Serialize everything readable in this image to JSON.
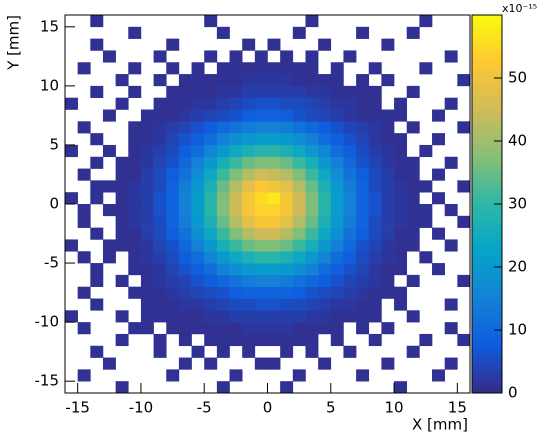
{
  "chart_data": {
    "type": "heatmap",
    "x_label": "X [mm]",
    "y_label": "Y [mm]",
    "z_multiplier": "x10⁻¹⁵",
    "xlim": [
      -16,
      16
    ],
    "ylim": [
      -16,
      16
    ],
    "zlim": [
      0,
      60
    ],
    "xticks": [
      -15,
      -10,
      -5,
      0,
      5,
      10,
      15
    ],
    "yticks": [
      -15,
      -10,
      -5,
      0,
      5,
      10,
      15
    ],
    "zticks": [
      0,
      10,
      20,
      30,
      40,
      50
    ],
    "xbins": [
      -16,
      -15,
      -14,
      -13,
      -12,
      -11,
      -10,
      -9,
      -8,
      -7,
      -6,
      -5,
      -4,
      -3,
      -2,
      -1,
      0,
      1,
      2,
      3,
      4,
      5,
      6,
      7,
      8,
      9,
      10,
      11,
      12,
      13,
      14,
      15,
      16
    ],
    "ybins": [
      -16,
      -15,
      -14,
      -13,
      -12,
      -11,
      -10,
      -9,
      -8,
      -7,
      -6,
      -5,
      -4,
      -3,
      -2,
      -1,
      0,
      1,
      2,
      3,
      4,
      5,
      6,
      7,
      8,
      9,
      10,
      11,
      12,
      13,
      14,
      15,
      16
    ],
    "colorscale": [
      "#352a87",
      "#0f5cdd",
      "#1481d6",
      "#06a4ca",
      "#2eb7a4",
      "#87bf77",
      "#d1bb59",
      "#fec832",
      "#f9fb0e"
    ],
    "z": [
      [
        0,
        0,
        0,
        0,
        1,
        0,
        0,
        0,
        0,
        0,
        0,
        0,
        1,
        0,
        0,
        0,
        0,
        1,
        0,
        0,
        0,
        0,
        0,
        0,
        0,
        0,
        1,
        0,
        0,
        0,
        0,
        0
      ],
      [
        0,
        1,
        0,
        0,
        0,
        0,
        0,
        0,
        1,
        0,
        0,
        0,
        0,
        1,
        0,
        0,
        0,
        0,
        1,
        0,
        0,
        0,
        0,
        1,
        0,
        0,
        0,
        0,
        0,
        1,
        0,
        0
      ],
      [
        0,
        0,
        0,
        1,
        0,
        0,
        0,
        0,
        0,
        1,
        0,
        1,
        0,
        0,
        0,
        1,
        1,
        0,
        0,
        0,
        1,
        0,
        0,
        0,
        0,
        1,
        0,
        0,
        0,
        0,
        1,
        0
      ],
      [
        0,
        0,
        1,
        0,
        0,
        0,
        0,
        1,
        0,
        0,
        1,
        0,
        1,
        0,
        1,
        0,
        0,
        1,
        0,
        1,
        0,
        0,
        1,
        0,
        0,
        0,
        0,
        1,
        0,
        0,
        0,
        0
      ],
      [
        0,
        0,
        0,
        0,
        1,
        0,
        0,
        1,
        0,
        1,
        0,
        1,
        1,
        1,
        1,
        1,
        1,
        1,
        1,
        1,
        0,
        1,
        0,
        0,
        1,
        0,
        0,
        0,
        1,
        0,
        0,
        1
      ],
      [
        0,
        1,
        0,
        0,
        0,
        1,
        1,
        0,
        1,
        1,
        1,
        1,
        1,
        1,
        2,
        2,
        2,
        2,
        1,
        1,
        1,
        1,
        0,
        1,
        0,
        1,
        0,
        0,
        0,
        0,
        1,
        0
      ],
      [
        1,
        0,
        0,
        0,
        1,
        0,
        1,
        1,
        1,
        1,
        1,
        2,
        2,
        3,
        3,
        3,
        3,
        3,
        3,
        2,
        2,
        1,
        1,
        1,
        1,
        0,
        0,
        1,
        0,
        0,
        0,
        0
      ],
      [
        0,
        0,
        1,
        0,
        0,
        0,
        1,
        1,
        1,
        2,
        2,
        3,
        4,
        5,
        5,
        6,
        6,
        5,
        5,
        4,
        3,
        2,
        2,
        1,
        1,
        0,
        1,
        0,
        0,
        0,
        1,
        0
      ],
      [
        0,
        1,
        0,
        0,
        0,
        1,
        1,
        1,
        2,
        3,
        4,
        5,
        6,
        8,
        9,
        9,
        9,
        9,
        8,
        6,
        5,
        4,
        3,
        2,
        1,
        1,
        1,
        0,
        0,
        0,
        0,
        0
      ],
      [
        0,
        0,
        1,
        0,
        1,
        0,
        1,
        2,
        3,
        4,
        6,
        8,
        10,
        12,
        14,
        15,
        15,
        14,
        12,
        10,
        8,
        6,
        4,
        3,
        2,
        1,
        0,
        1,
        0,
        0,
        0,
        1
      ],
      [
        0,
        0,
        1,
        0,
        0,
        1,
        1,
        2,
        4,
        6,
        8,
        11,
        15,
        18,
        20,
        21,
        21,
        20,
        18,
        15,
        11,
        8,
        6,
        4,
        2,
        1,
        1,
        0,
        0,
        1,
        0,
        0
      ],
      [
        0,
        1,
        0,
        1,
        0,
        1,
        2,
        3,
        5,
        8,
        11,
        16,
        20,
        24,
        27,
        29,
        29,
        27,
        24,
        20,
        16,
        11,
        8,
        5,
        3,
        2,
        1,
        0,
        1,
        0,
        0,
        0
      ],
      [
        1,
        0,
        0,
        1,
        1,
        1,
        2,
        4,
        6,
        10,
        15,
        20,
        26,
        31,
        35,
        37,
        37,
        35,
        31,
        26,
        20,
        15,
        10,
        6,
        4,
        2,
        1,
        1,
        0,
        0,
        1,
        0
      ],
      [
        0,
        0,
        1,
        0,
        1,
        1,
        3,
        5,
        8,
        12,
        18,
        24,
        31,
        37,
        42,
        45,
        45,
        42,
        37,
        31,
        24,
        18,
        12,
        8,
        5,
        3,
        1,
        1,
        0,
        1,
        0,
        0
      ],
      [
        0,
        1,
        0,
        0,
        1,
        2,
        3,
        5,
        9,
        14,
        20,
        27,
        35,
        42,
        48,
        51,
        51,
        48,
        42,
        35,
        27,
        20,
        14,
        9,
        5,
        3,
        2,
        1,
        1,
        0,
        0,
        1
      ],
      [
        0,
        1,
        0,
        1,
        1,
        2,
        3,
        6,
        9,
        15,
        21,
        29,
        37,
        45,
        51,
        54,
        54,
        51,
        45,
        37,
        29,
        21,
        15,
        9,
        6,
        3,
        2,
        1,
        1,
        0,
        1,
        0
      ],
      [
        1,
        0,
        1,
        0,
        1,
        2,
        3,
        6,
        9,
        15,
        21,
        29,
        37,
        45,
        51,
        55,
        57,
        51,
        45,
        37,
        29,
        21,
        15,
        9,
        6,
        3,
        2,
        1,
        0,
        1,
        0,
        0
      ],
      [
        0,
        0,
        1,
        1,
        1,
        2,
        3,
        5,
        9,
        14,
        20,
        27,
        35,
        42,
        48,
        52,
        50,
        48,
        42,
        35,
        27,
        20,
        14,
        9,
        5,
        3,
        2,
        1,
        1,
        0,
        0,
        1
      ],
      [
        0,
        1,
        0,
        0,
        1,
        1,
        3,
        5,
        8,
        12,
        18,
        24,
        31,
        37,
        42,
        45,
        44,
        42,
        37,
        31,
        24,
        18,
        12,
        8,
        5,
        3,
        1,
        1,
        0,
        1,
        0,
        0
      ],
      [
        0,
        0,
        1,
        0,
        1,
        1,
        2,
        4,
        6,
        10,
        15,
        20,
        26,
        31,
        35,
        37,
        37,
        35,
        31,
        26,
        20,
        15,
        10,
        6,
        4,
        2,
        1,
        1,
        0,
        0,
        1,
        0
      ],
      [
        1,
        0,
        0,
        1,
        0,
        1,
        2,
        3,
        5,
        8,
        11,
        16,
        20,
        24,
        27,
        29,
        29,
        27,
        24,
        20,
        16,
        11,
        8,
        5,
        3,
        2,
        1,
        0,
        1,
        0,
        0,
        0
      ],
      [
        0,
        0,
        1,
        0,
        0,
        1,
        1,
        2,
        4,
        6,
        8,
        11,
        15,
        18,
        20,
        21,
        21,
        20,
        18,
        15,
        11,
        8,
        6,
        4,
        2,
        1,
        1,
        0,
        0,
        1,
        0,
        0
      ],
      [
        0,
        1,
        0,
        0,
        0,
        1,
        1,
        2,
        3,
        4,
        6,
        8,
        10,
        12,
        14,
        15,
        15,
        14,
        12,
        10,
        8,
        6,
        4,
        3,
        2,
        1,
        0,
        1,
        0,
        0,
        0,
        1
      ],
      [
        0,
        0,
        0,
        1,
        0,
        0,
        1,
        1,
        1,
        2,
        3,
        4,
        5,
        6,
        8,
        9,
        9,
        8,
        6,
        5,
        4,
        3,
        2,
        1,
        1,
        1,
        1,
        0,
        0,
        1,
        0,
        0
      ],
      [
        1,
        0,
        0,
        0,
        1,
        0,
        0,
        1,
        1,
        1,
        2,
        2,
        3,
        4,
        5,
        6,
        6,
        5,
        5,
        4,
        3,
        2,
        2,
        1,
        1,
        0,
        1,
        0,
        0,
        0,
        1,
        0
      ],
      [
        0,
        0,
        1,
        0,
        0,
        1,
        0,
        0,
        1,
        1,
        1,
        1,
        2,
        2,
        3,
        3,
        3,
        3,
        3,
        2,
        2,
        1,
        1,
        1,
        1,
        0,
        0,
        1,
        0,
        0,
        0,
        0
      ],
      [
        0,
        0,
        0,
        0,
        1,
        0,
        0,
        1,
        0,
        1,
        1,
        1,
        1,
        1,
        2,
        2,
        2,
        2,
        1,
        1,
        1,
        1,
        0,
        1,
        0,
        1,
        0,
        0,
        0,
        0,
        0,
        1
      ],
      [
        0,
        1,
        0,
        0,
        0,
        1,
        0,
        0,
        1,
        0,
        1,
        0,
        1,
        1,
        1,
        1,
        1,
        1,
        1,
        1,
        0,
        1,
        0,
        0,
        1,
        0,
        0,
        0,
        1,
        0,
        0,
        0
      ],
      [
        0,
        0,
        0,
        1,
        0,
        0,
        0,
        1,
        0,
        0,
        0,
        1,
        0,
        1,
        0,
        1,
        0,
        1,
        0,
        1,
        0,
        0,
        1,
        0,
        0,
        0,
        0,
        0,
        0,
        0,
        1,
        0
      ],
      [
        0,
        0,
        1,
        0,
        0,
        0,
        0,
        0,
        1,
        0,
        0,
        0,
        0,
        0,
        1,
        0,
        1,
        0,
        0,
        0,
        1,
        0,
        0,
        0,
        0,
        1,
        0,
        0,
        0,
        0,
        0,
        0
      ],
      [
        0,
        0,
        0,
        0,
        0,
        1,
        0,
        0,
        0,
        0,
        0,
        0,
        1,
        0,
        0,
        0,
        0,
        0,
        1,
        0,
        0,
        0,
        0,
        1,
        0,
        0,
        0,
        1,
        0,
        0,
        0,
        0
      ],
      [
        0,
        0,
        1,
        0,
        0,
        0,
        0,
        0,
        0,
        0,
        0,
        1,
        0,
        0,
        0,
        0,
        0,
        0,
        0,
        1,
        0,
        0,
        0,
        0,
        0,
        0,
        0,
        0,
        1,
        0,
        0,
        0
      ]
    ]
  }
}
